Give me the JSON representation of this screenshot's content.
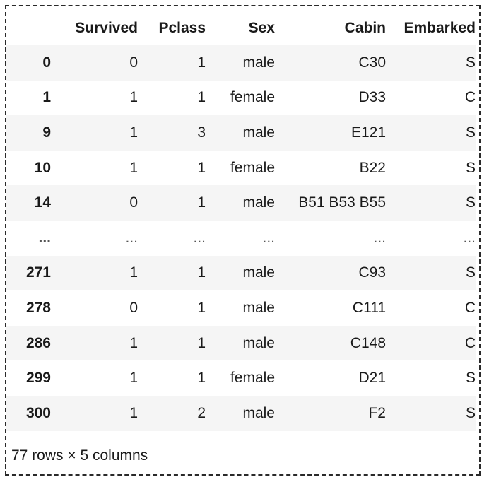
{
  "table": {
    "columns": [
      "",
      "Survived",
      "Pclass",
      "Sex",
      "Cabin",
      "Embarked"
    ],
    "rows": [
      [
        "0",
        "0",
        "1",
        "male",
        "C30",
        "S"
      ],
      [
        "1",
        "1",
        "1",
        "female",
        "D33",
        "C"
      ],
      [
        "9",
        "1",
        "3",
        "male",
        "E121",
        "S"
      ],
      [
        "10",
        "1",
        "1",
        "female",
        "B22",
        "S"
      ],
      [
        "14",
        "0",
        "1",
        "male",
        "B51 B53 B55",
        "S"
      ],
      [
        "...",
        "...",
        "...",
        "...",
        "...",
        "..."
      ],
      [
        "271",
        "1",
        "1",
        "male",
        "C93",
        "S"
      ],
      [
        "278",
        "0",
        "1",
        "male",
        "C111",
        "C"
      ],
      [
        "286",
        "1",
        "1",
        "male",
        "C148",
        "C"
      ],
      [
        "299",
        "1",
        "1",
        "female",
        "D21",
        "S"
      ],
      [
        "300",
        "1",
        "2",
        "male",
        "F2",
        "S"
      ]
    ]
  },
  "footer": "77 rows × 5 columns"
}
